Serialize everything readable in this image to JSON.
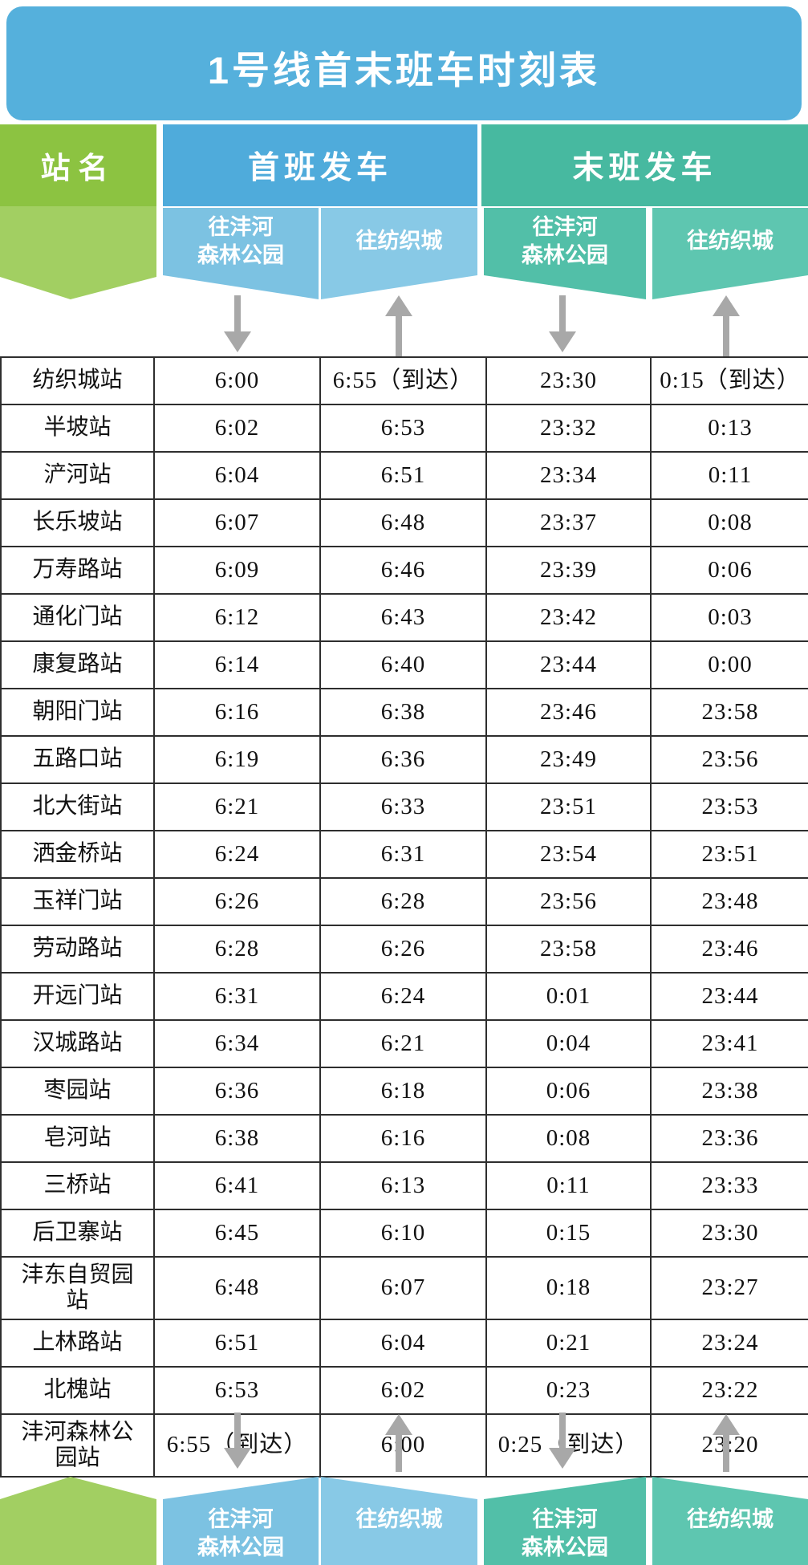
{
  "title": "1号线首末班车时刻表",
  "header": {
    "station_label": "站名",
    "first_group": "首班发车",
    "last_group": "末班发车"
  },
  "directions": {
    "park": {
      "line1": "往沣河",
      "line2": "森林公园",
      "full": "往沣河森林公园"
    },
    "textile": {
      "line1": "往纺织城",
      "full": "往纺织城"
    }
  },
  "columns": [
    "站名",
    "首班发车 往沣河森林公园",
    "首班发车 往纺织城",
    "末班发车 往沣河森林公园",
    "末班发车 往纺织城"
  ],
  "rows": [
    {
      "station": "纺织城站",
      "times": [
        "6:00",
        "6:55（到达）",
        "23:30",
        "0:15（到达）"
      ]
    },
    {
      "station": "半坡站",
      "times": [
        "6:02",
        "6:53",
        "23:32",
        "0:13"
      ]
    },
    {
      "station": "浐河站",
      "times": [
        "6:04",
        "6:51",
        "23:34",
        "0:11"
      ]
    },
    {
      "station": "长乐坡站",
      "times": [
        "6:07",
        "6:48",
        "23:37",
        "0:08"
      ]
    },
    {
      "station": "万寿路站",
      "times": [
        "6:09",
        "6:46",
        "23:39",
        "0:06"
      ]
    },
    {
      "station": "通化门站",
      "times": [
        "6:12",
        "6:43",
        "23:42",
        "0:03"
      ]
    },
    {
      "station": "康复路站",
      "times": [
        "6:14",
        "6:40",
        "23:44",
        "0:00"
      ]
    },
    {
      "station": "朝阳门站",
      "times": [
        "6:16",
        "6:38",
        "23:46",
        "23:58"
      ]
    },
    {
      "station": "五路口站",
      "times": [
        "6:19",
        "6:36",
        "23:49",
        "23:56"
      ]
    },
    {
      "station": "北大街站",
      "times": [
        "6:21",
        "6:33",
        "23:51",
        "23:53"
      ]
    },
    {
      "station": "洒金桥站",
      "times": [
        "6:24",
        "6:31",
        "23:54",
        "23:51"
      ]
    },
    {
      "station": "玉祥门站",
      "times": [
        "6:26",
        "6:28",
        "23:56",
        "23:48"
      ]
    },
    {
      "station": "劳动路站",
      "times": [
        "6:28",
        "6:26",
        "23:58",
        "23:46"
      ]
    },
    {
      "station": "开远门站",
      "times": [
        "6:31",
        "6:24",
        "0:01",
        "23:44"
      ]
    },
    {
      "station": "汉城路站",
      "times": [
        "6:34",
        "6:21",
        "0:04",
        "23:41"
      ]
    },
    {
      "station": "枣园站",
      "times": [
        "6:36",
        "6:18",
        "0:06",
        "23:38"
      ]
    },
    {
      "station": "皂河站",
      "times": [
        "6:38",
        "6:16",
        "0:08",
        "23:36"
      ]
    },
    {
      "station": "三桥站",
      "times": [
        "6:41",
        "6:13",
        "0:11",
        "23:33"
      ]
    },
    {
      "station": "后卫寨站",
      "times": [
        "6:45",
        "6:10",
        "0:15",
        "23:30"
      ]
    },
    {
      "station": "沣东自贸园站",
      "times": [
        "6:48",
        "6:07",
        "0:18",
        "23:27"
      ]
    },
    {
      "station": "上林路站",
      "times": [
        "6:51",
        "6:04",
        "0:21",
        "23:24"
      ]
    },
    {
      "station": "北槐站",
      "times": [
        "6:53",
        "6:02",
        "0:23",
        "23:22"
      ]
    },
    {
      "station": "沣河森林公园站",
      "times": [
        "6:55（到达）",
        "6:00",
        "0:25（到达）",
        "23:20"
      ]
    }
  ],
  "colors": {
    "banner": "#55b0dc",
    "blue-dark": "#4fabdb",
    "blue-light1": "#7cc2e2",
    "blue-light2": "#88c9e6",
    "teal-dark": "#47b9a0",
    "teal-light1": "#52bfa8",
    "teal-light2": "#5ec6b0",
    "green-dark": "#8cc341",
    "green-light": "#a2cf62",
    "arrow": "#a8a8a8",
    "line": "#2e2e2e"
  }
}
